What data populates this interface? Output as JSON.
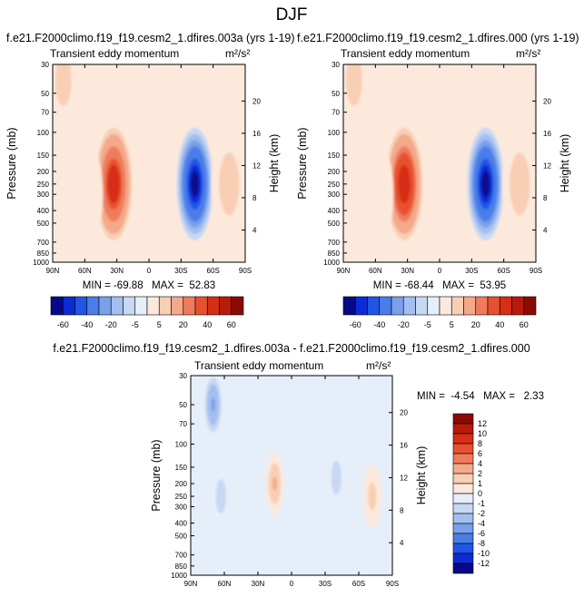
{
  "figure": {
    "title": "DJF",
    "colors": {
      "main_palette": [
        "#08088a",
        "#0b2bd6",
        "#2155e6",
        "#4a7de9",
        "#7aa0ea",
        "#a3bff0",
        "#c7d8f3",
        "#e6eefa",
        "#fde9dc",
        "#f8cfb4",
        "#f4a98a",
        "#ef7b5c",
        "#e8512f",
        "#d62f16",
        "#b81b0b",
        "#8a0a04"
      ],
      "diff_palette": [
        "#08088a",
        "#0b2bd6",
        "#2155e6",
        "#4a7de9",
        "#7aa0ea",
        "#a3bff0",
        "#c7d8f3",
        "#e6eefa",
        "#fde9dc",
        "#f8cfb4",
        "#f4a98a",
        "#ef7b5c",
        "#e8512f",
        "#d62f16",
        "#b81b0b",
        "#8a0a04"
      ]
    }
  },
  "chart_data": [
    {
      "type": "heatmap",
      "title": "f.e21.F2000climo.f19_f19.cesm2_1.dfires.003a (yrs 1-19)",
      "subtitle": "Transient eddy momentum",
      "units": "m²/s²",
      "xlabel": "",
      "ylabel": "Pressure (mb)",
      "y2label": "Height (km)",
      "x_ticks": [
        "90N",
        "60N",
        "30N",
        "0",
        "30S",
        "60S",
        "90S"
      ],
      "y_ticks": [
        "30",
        "50",
        "70",
        "100",
        "150",
        "200",
        "250",
        "300",
        "400",
        "500",
        "700",
        "850",
        "1000"
      ],
      "y2_ticks": [
        "4",
        "8",
        "12",
        "16",
        "20"
      ],
      "stats": "MIN = -69.88   MAX =  52.83",
      "colorbar_levels": [
        "-60",
        "-40",
        "-20",
        "-5",
        "5",
        "20",
        "40",
        "60"
      ],
      "features": [
        {
          "lat": 80,
          "p": 40,
          "value": 8
        },
        {
          "lat": 33,
          "p": 250,
          "value": 52.83
        },
        {
          "lat": -43,
          "p": 250,
          "value": -69.88
        },
        {
          "lat": -75,
          "p": 250,
          "value": 10
        },
        {
          "lat": 60,
          "p": 300,
          "value": 3
        }
      ]
    },
    {
      "type": "heatmap",
      "title": "f.e21.F2000climo.f19_f19.cesm2_1.dfires.000 (yrs 1-19)",
      "subtitle": "Transient eddy momentum",
      "units": "m²/s²",
      "xlabel": "",
      "ylabel": "Pressure (mb)",
      "y2label": "Height (km)",
      "x_ticks": [
        "90N",
        "60N",
        "30N",
        "0",
        "30S",
        "60S",
        "90S"
      ],
      "y_ticks": [
        "30",
        "50",
        "70",
        "100",
        "150",
        "200",
        "250",
        "300",
        "400",
        "500",
        "700",
        "850",
        "1000"
      ],
      "y2_ticks": [
        "4",
        "8",
        "12",
        "16",
        "20"
      ],
      "stats": "MIN = -68.44   MAX =  53.95",
      "colorbar_levels": [
        "-60",
        "-40",
        "-20",
        "-5",
        "5",
        "20",
        "40",
        "60"
      ],
      "features": [
        {
          "lat": 80,
          "p": 40,
          "value": 8
        },
        {
          "lat": 33,
          "p": 250,
          "value": 53.95
        },
        {
          "lat": -43,
          "p": 250,
          "value": -68.44
        },
        {
          "lat": -75,
          "p": 250,
          "value": 10
        },
        {
          "lat": 60,
          "p": 300,
          "value": 3
        }
      ]
    },
    {
      "type": "heatmap",
      "title": "f.e21.F2000climo.f19_f19.cesm2_1.dfires.003a - f.e21.F2000climo.f19_f19.cesm2_1.dfires.000",
      "subtitle": "Transient eddy momentum",
      "units": "m²/s²",
      "xlabel": "",
      "ylabel": "Pressure (mb)",
      "y2label": "Height (km)",
      "x_ticks": [
        "90N",
        "60N",
        "30N",
        "0",
        "30S",
        "60S",
        "90S"
      ],
      "y_ticks": [
        "30",
        "50",
        "70",
        "100",
        "150",
        "200",
        "250",
        "300",
        "400",
        "500",
        "700",
        "850",
        "1000"
      ],
      "y2_ticks": [
        "4",
        "8",
        "12",
        "16",
        "20"
      ],
      "stats": "MIN =  -4.54   MAX =   2.33",
      "colorbar_levels": [
        "12",
        "10",
        "8",
        "6",
        "4",
        "2",
        "1",
        "0",
        "-1",
        "-2",
        "-4",
        "-6",
        "-8",
        "-10",
        "-12"
      ],
      "features": [
        {
          "lat": 70,
          "p": 50,
          "value": -4.54
        },
        {
          "lat": 63,
          "p": 250,
          "value": -2
        },
        {
          "lat": 15,
          "p": 200,
          "value": 2.33
        },
        {
          "lat": -40,
          "p": 180,
          "value": -2
        },
        {
          "lat": -72,
          "p": 250,
          "value": 1.5
        }
      ]
    }
  ]
}
